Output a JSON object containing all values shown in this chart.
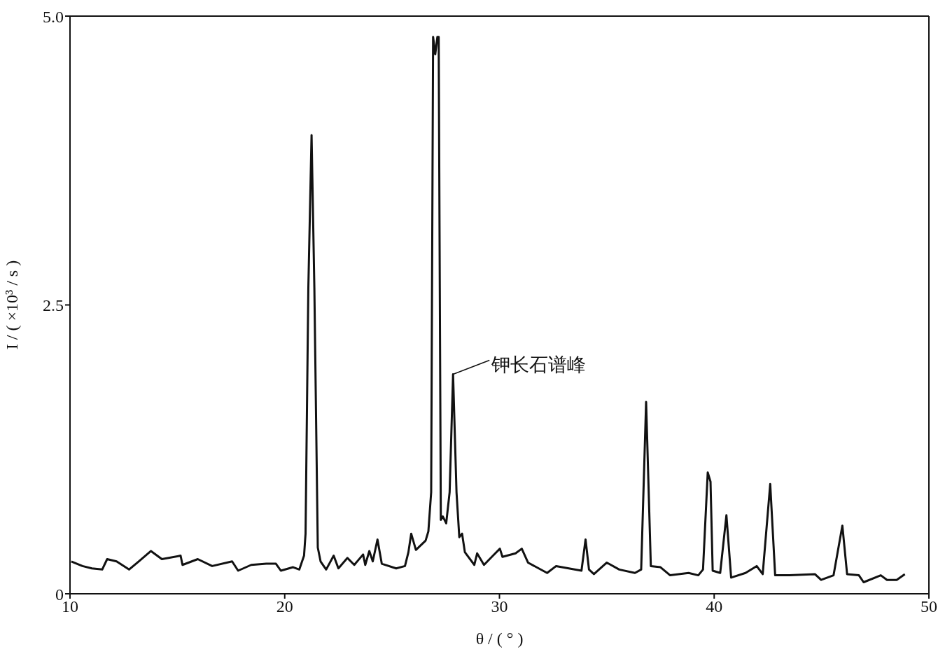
{
  "chart_data": {
    "type": "line",
    "xlabel": "θ / ( ° )",
    "ylabel": "I / ( ×10³ / s )",
    "xlim": [
      10,
      50
    ],
    "xticks": [
      10,
      20,
      30,
      40,
      50
    ],
    "ylim": [
      0,
      5
    ],
    "yticks": [
      0,
      2.5,
      {
        "value": 5,
        "label": "5.0"
      }
    ],
    "marker": "none",
    "line_style": "solid",
    "annotations": [
      {
        "text": "钾长石谱峰",
        "x": 27.84,
        "y": 1.9
      }
    ],
    "series": [
      {
        "color": "#111111",
        "x": [
          10.06,
          10.58,
          11.02,
          11.5,
          11.73,
          12.17,
          12.75,
          13.2,
          13.77,
          14.28,
          15.15,
          15.24,
          15.95,
          16.62,
          17.55,
          17.83,
          18.44,
          19.14,
          19.59,
          19.82,
          20.39,
          20.68,
          20.9,
          20.97,
          21.1,
          21.25,
          21.38,
          21.54,
          21.67,
          21.93,
          22.28,
          22.5,
          22.92,
          23.24,
          23.65,
          23.75,
          23.94,
          24.1,
          24.32,
          24.52,
          25.19,
          25.6,
          25.76,
          25.89,
          26.11,
          26.56,
          26.69,
          26.82,
          26.91,
          27.01,
          27.11,
          27.17,
          27.27,
          27.36,
          27.52,
          27.68,
          27.84,
          28.0,
          28.13,
          28.26,
          28.39,
          28.83,
          28.96,
          29.28,
          29.7,
          30.02,
          30.14,
          30.75,
          31.04,
          31.33,
          32.22,
          32.64,
          33.82,
          34.01,
          34.17,
          34.4,
          35.0,
          35.58,
          36.31,
          36.6,
          36.83,
          37.05,
          37.5,
          37.95,
          38.81,
          39.26,
          39.48,
          39.7,
          39.83,
          39.93,
          40.28,
          40.57,
          40.79,
          41.46,
          41.98,
          42.26,
          42.61,
          42.84,
          43.51,
          44.69,
          44.98,
          45.56,
          45.97,
          46.19,
          46.74,
          46.96,
          47.76,
          48.05,
          48.5,
          48.88
        ],
        "values": [
          0.28,
          0.24,
          0.22,
          0.21,
          0.3,
          0.28,
          0.21,
          0.28,
          0.37,
          0.3,
          0.33,
          0.25,
          0.3,
          0.24,
          0.28,
          0.2,
          0.25,
          0.26,
          0.26,
          0.2,
          0.23,
          0.21,
          0.33,
          0.52,
          2.65,
          3.97,
          2.65,
          0.4,
          0.28,
          0.21,
          0.33,
          0.22,
          0.31,
          0.25,
          0.34,
          0.25,
          0.37,
          0.28,
          0.47,
          0.26,
          0.22,
          0.24,
          0.36,
          0.52,
          0.38,
          0.46,
          0.54,
          0.88,
          4.82,
          4.67,
          4.82,
          4.82,
          0.64,
          0.67,
          0.61,
          0.88,
          1.9,
          0.88,
          0.49,
          0.52,
          0.36,
          0.25,
          0.35,
          0.25,
          0.33,
          0.39,
          0.32,
          0.35,
          0.39,
          0.27,
          0.18,
          0.24,
          0.2,
          0.47,
          0.21,
          0.17,
          0.27,
          0.21,
          0.18,
          0.21,
          1.66,
          0.24,
          0.23,
          0.16,
          0.18,
          0.16,
          0.21,
          1.05,
          0.97,
          0.2,
          0.18,
          0.68,
          0.14,
          0.18,
          0.24,
          0.17,
          0.95,
          0.16,
          0.16,
          0.17,
          0.12,
          0.16,
          0.59,
          0.17,
          0.16,
          0.1,
          0.16,
          0.12,
          0.12,
          0.17
        ]
      }
    ]
  }
}
